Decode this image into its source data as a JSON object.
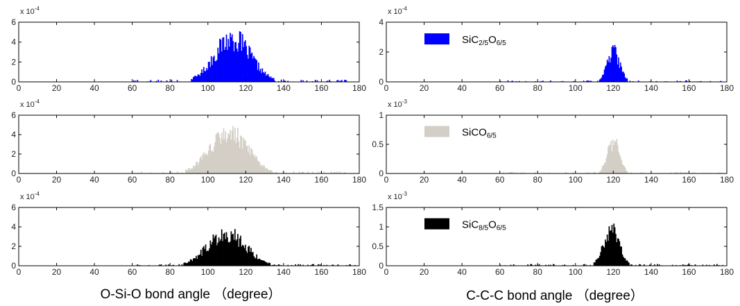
{
  "figure": {
    "left_xlabel": "O-Si-O bond angle （degree）",
    "right_xlabel": "C-C-C bond angle （degree）"
  },
  "chart_data": [
    {
      "type": "bar",
      "column": "left",
      "row": 0,
      "series": [
        {
          "name": "SiC2/5O6/5",
          "color": "#0000ff",
          "center": 113,
          "sigma": 9.5,
          "peak": 5.6
        }
      ],
      "xlim": [
        0,
        180
      ],
      "xticks": [
        0,
        20,
        40,
        60,
        80,
        100,
        120,
        140,
        160,
        180
      ],
      "ylim": [
        0,
        6
      ],
      "yticks": [
        0,
        2,
        4,
        6
      ],
      "yticklabels": [
        "0",
        "2",
        "4",
        "6"
      ],
      "y_exponent_base": "x 10",
      "y_exponent": "-4"
    },
    {
      "type": "bar",
      "column": "right",
      "row": 0,
      "series": [
        {
          "name": "SiC2/5O6/5",
          "color": "#0000ff",
          "center": 120,
          "sigma": 3.3,
          "peak": 2.6
        }
      ],
      "xlim": [
        0,
        180
      ],
      "xticks": [
        0,
        20,
        40,
        60,
        80,
        100,
        120,
        140,
        160,
        180
      ],
      "ylim": [
        0,
        4
      ],
      "yticks": [
        0,
        2,
        4
      ],
      "yticklabels": [
        "0",
        "2",
        "4"
      ],
      "y_exponent_base": "x 10",
      "y_exponent": "-4",
      "legend": {
        "text_main": "SiC",
        "text_sub1": "2/5",
        "text_mid": "O",
        "text_sub2": "6/5",
        "color": "#0000ff"
      }
    },
    {
      "type": "bar",
      "column": "left",
      "row": 1,
      "series": [
        {
          "name": "SiCO6/5",
          "color": "#d4cfc6",
          "center": 111,
          "sigma": 10,
          "peak": 5.3
        }
      ],
      "xlim": [
        0,
        180
      ],
      "xticks": [
        0,
        20,
        40,
        60,
        80,
        100,
        120,
        140,
        160,
        180
      ],
      "ylim": [
        0,
        6
      ],
      "yticks": [
        0,
        2,
        4,
        6
      ],
      "yticklabels": [
        "0",
        "2",
        "4",
        "6"
      ],
      "y_exponent_base": "x 10",
      "y_exponent": "-4"
    },
    {
      "type": "bar",
      "column": "right",
      "row": 1,
      "series": [
        {
          "name": "SiCO6/5",
          "color": "#d4cfc6",
          "center": 120,
          "sigma": 3.2,
          "peak": 0.7
        }
      ],
      "xlim": [
        0,
        180
      ],
      "xticks": [
        0,
        20,
        40,
        60,
        80,
        100,
        120,
        140,
        160,
        180
      ],
      "ylim": [
        0,
        1
      ],
      "yticks": [
        0,
        0.5,
        1
      ],
      "yticklabels": [
        "0",
        "0.5",
        "1"
      ],
      "y_exponent_base": "x 10",
      "y_exponent": "-3",
      "legend": {
        "text_main": "SiCO",
        "text_sub1": "",
        "text_mid": "",
        "text_sub2": "6/5",
        "color": "#d4cfc6"
      }
    },
    {
      "type": "bar",
      "column": "left",
      "row": 2,
      "series": [
        {
          "name": "SiC8/5O6/5",
          "color": "#000000",
          "center": 110,
          "sigma": 10,
          "peak": 4.3
        }
      ],
      "xlim": [
        0,
        180
      ],
      "xticks": [
        0,
        20,
        40,
        60,
        80,
        100,
        120,
        140,
        160,
        180
      ],
      "ylim": [
        0,
        6
      ],
      "yticks": [
        0,
        2,
        4,
        6
      ],
      "yticklabels": [
        "0",
        "2",
        "4",
        "6"
      ],
      "y_exponent_base": "x 10",
      "y_exponent": "-4"
    },
    {
      "type": "bar",
      "column": "right",
      "row": 2,
      "series": [
        {
          "name": "SiC8/5O6/5",
          "color": "#000000",
          "center": 119,
          "sigma": 4.2,
          "peak": 1.15
        }
      ],
      "xlim": [
        0,
        180
      ],
      "xticks": [
        0,
        20,
        40,
        60,
        80,
        100,
        120,
        140,
        160,
        180
      ],
      "ylim": [
        0,
        1.5
      ],
      "yticks": [
        0,
        0.5,
        1,
        1.5
      ],
      "yticklabels": [
        "0",
        "0.5",
        "1",
        "1.5"
      ],
      "y_exponent_base": "x 10",
      "y_exponent": "-3",
      "legend": {
        "text_main": "SiC",
        "text_sub1": "8/5",
        "text_mid": "O",
        "text_sub2": "6/5",
        "color": "#000000"
      }
    }
  ]
}
